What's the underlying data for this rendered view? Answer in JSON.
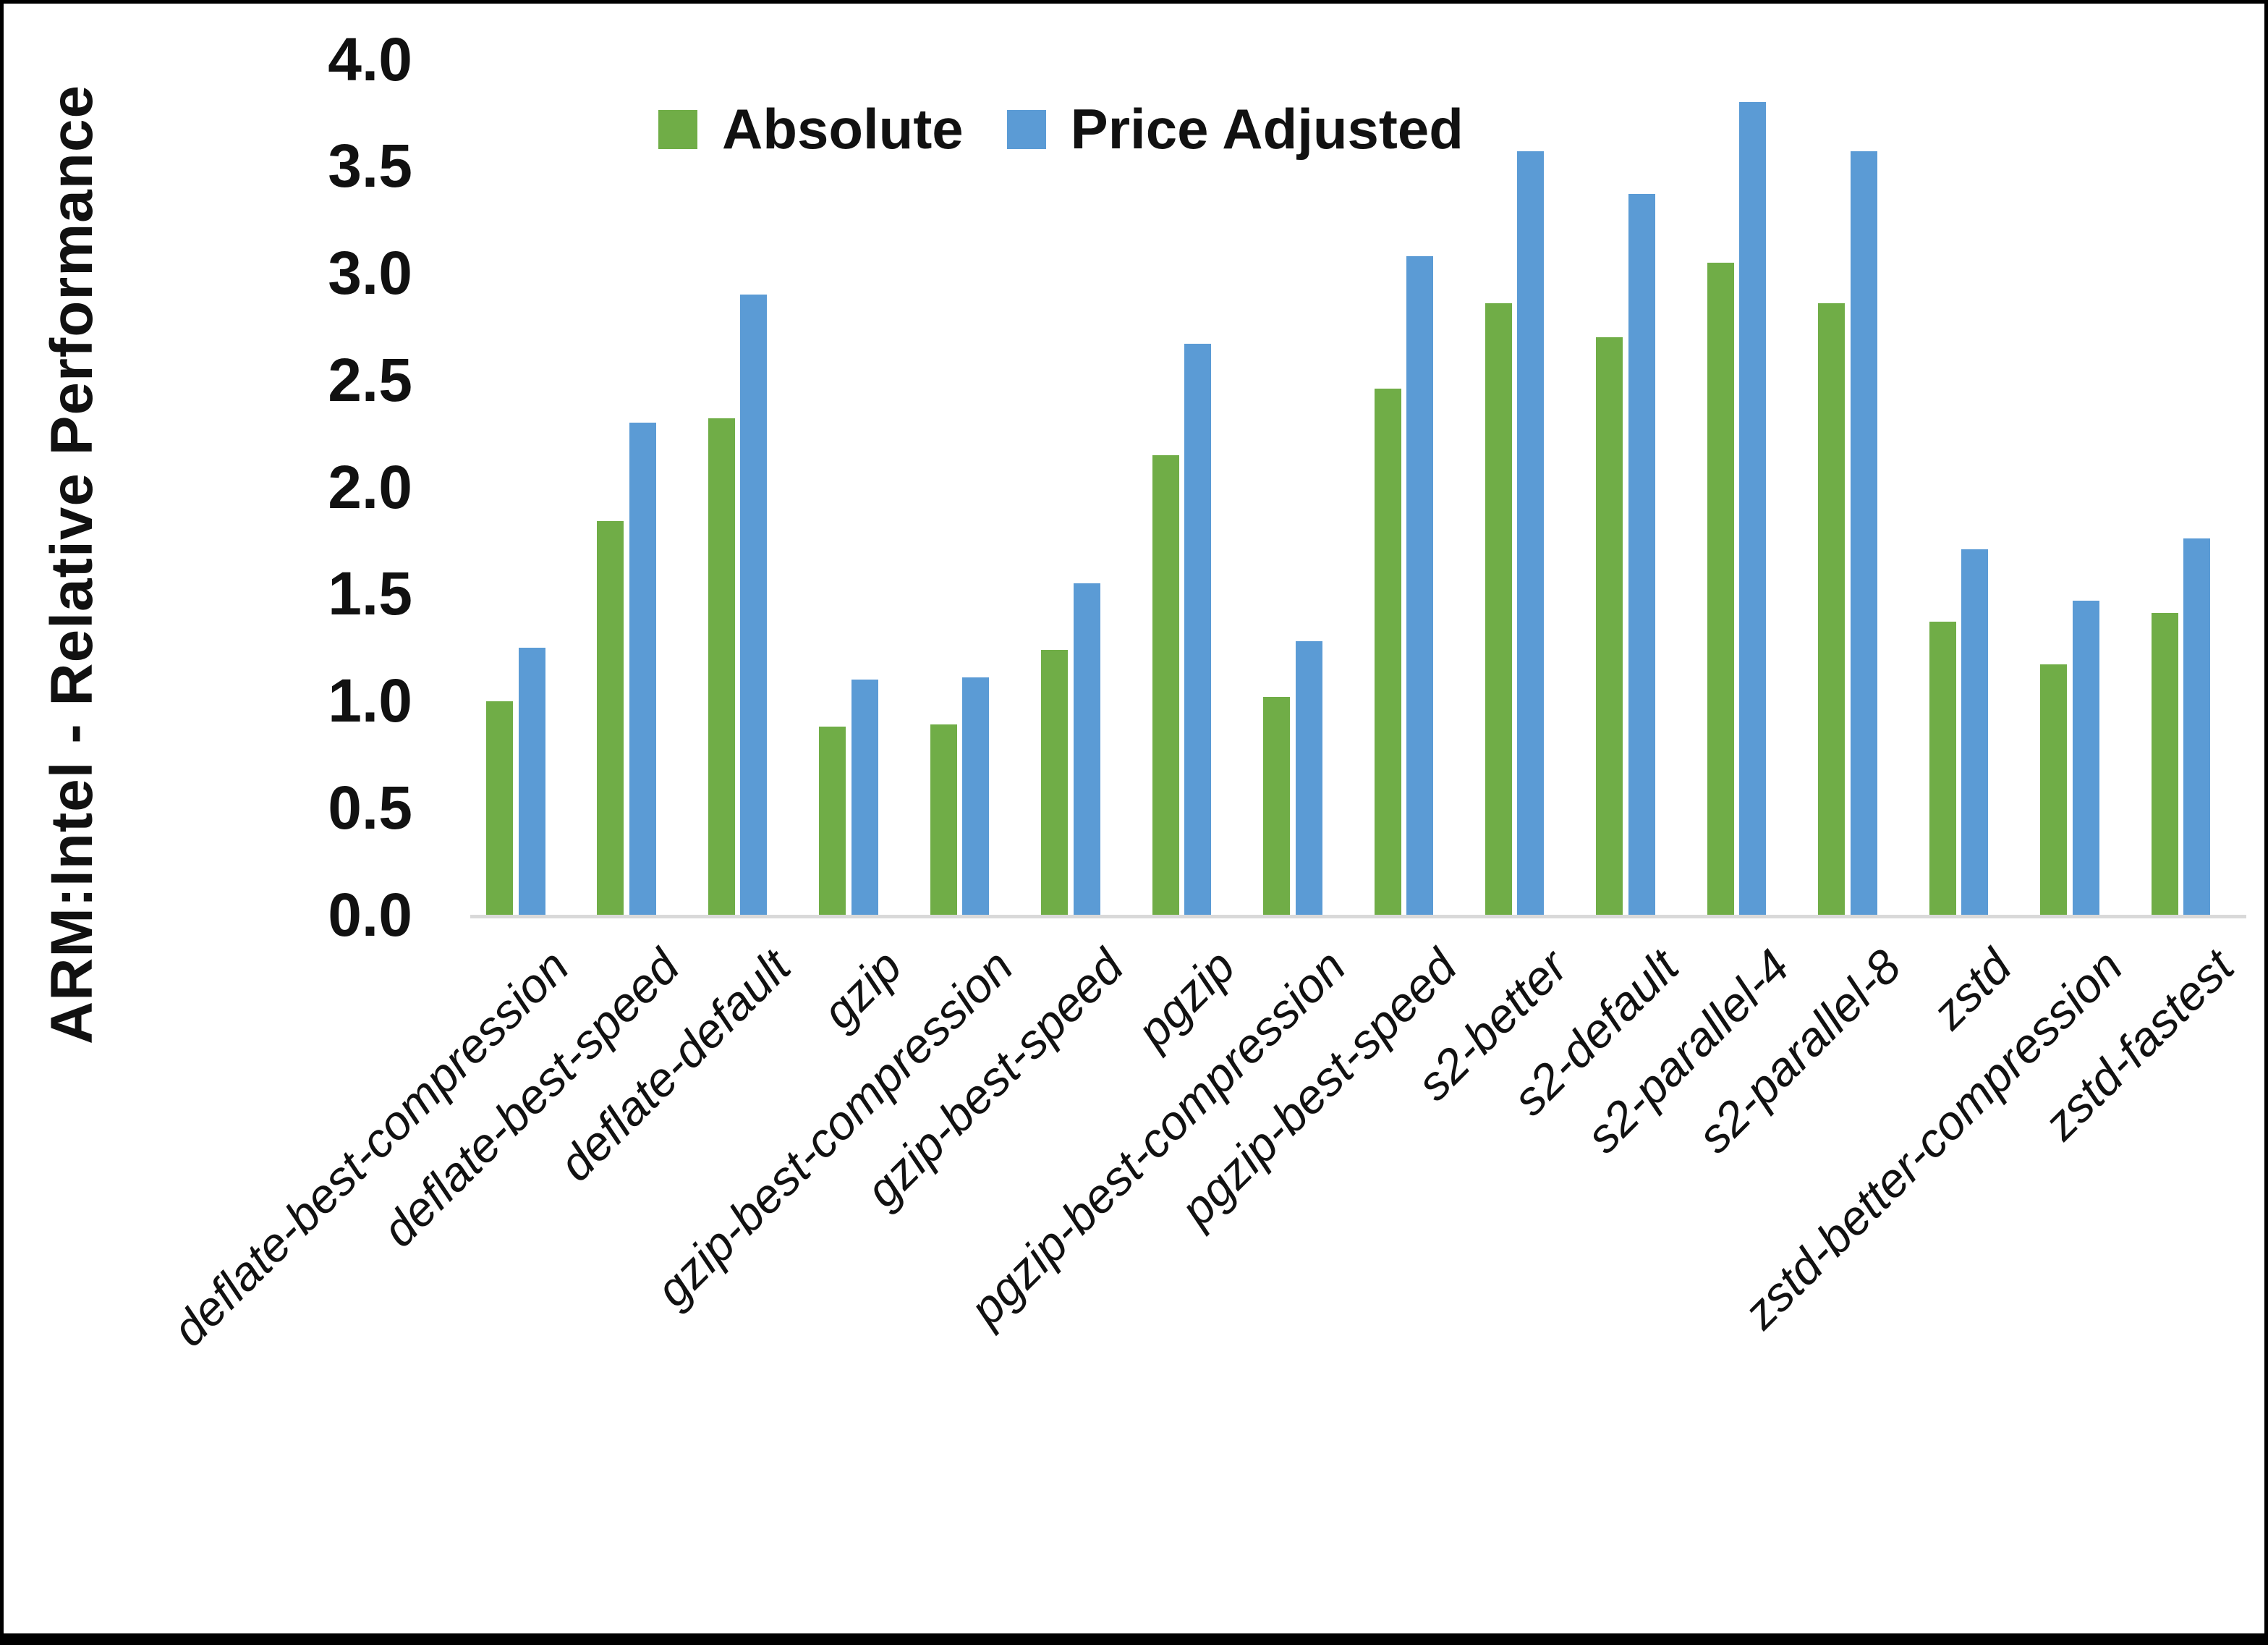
{
  "chart_data": {
    "type": "bar",
    "title": "",
    "ylabel": "ARM:Intel - Relative Performance",
    "xlabel": "",
    "ylim": [
      0.0,
      4.0
    ],
    "ytick_step": 0.5,
    "yticks": [
      "0.0",
      "0.5",
      "1.0",
      "1.5",
      "2.0",
      "2.5",
      "3.0",
      "3.5",
      "4.0"
    ],
    "grid": false,
    "legend_position": "top",
    "axis_line_color": "#D9D9D9",
    "categories": [
      "deflate-best-compression",
      "deflate-best-speed",
      "deflate-default",
      "gzip",
      "gzip-best-compression",
      "gzip-best-speed",
      "pgzip",
      "pgzip-best-compression",
      "pgzip-best-speed",
      "s2-better",
      "s2-default",
      "s2-parallel-4",
      "s2-parallel-8",
      "zstd",
      "zstd-better-compression",
      "zstd-fastest"
    ],
    "series": [
      {
        "name": "Absolute",
        "color": "#70AD47",
        "values": [
          1.0,
          1.84,
          2.32,
          0.88,
          0.89,
          1.24,
          2.15,
          1.02,
          2.46,
          2.86,
          2.7,
          3.05,
          2.86,
          1.37,
          1.17,
          1.41
        ]
      },
      {
        "name": "Price Adjusted",
        "color": "#5B9BD5",
        "values": [
          1.25,
          2.3,
          2.9,
          1.1,
          1.11,
          1.55,
          2.67,
          1.28,
          3.08,
          3.57,
          3.37,
          3.8,
          3.57,
          1.71,
          1.47,
          1.76
        ]
      }
    ]
  },
  "legend": {
    "items": [
      {
        "label": "Absolute",
        "color": "#70AD47"
      },
      {
        "label": "Price Adjusted",
        "color": "#5B9BD5"
      }
    ]
  }
}
